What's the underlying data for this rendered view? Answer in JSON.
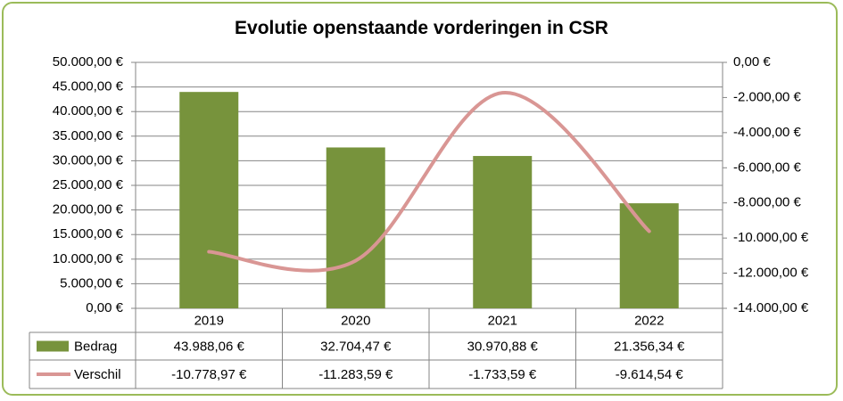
{
  "chart_data": {
    "type": "bar",
    "title": "Evolutie openstaande vorderingen in CSR",
    "categories": [
      "2019",
      "2020",
      "2021",
      "2022"
    ],
    "series": [
      {
        "name": "Bedrag",
        "type": "bar",
        "axis": "left",
        "color": "#77933c",
        "values": [
          43988.06,
          32704.47,
          30970.88,
          21356.34
        ],
        "table_labels": [
          "43.988,06 €",
          "32.704,47 €",
          "30.970,88 €",
          "21.356,34 €"
        ]
      },
      {
        "name": "Verschil",
        "type": "line",
        "axis": "right",
        "color": "#d99694",
        "values": [
          -10778.97,
          -11283.59,
          -1733.59,
          -9614.54
        ],
        "table_labels": [
          "-10.778,97 €",
          "-11.283,59 €",
          "-1.733,59 €",
          "-9.614,54 €"
        ]
      }
    ],
    "y_left": {
      "ylim": [
        0,
        50000
      ],
      "ticks": [
        0,
        5000,
        10000,
        15000,
        20000,
        25000,
        30000,
        35000,
        40000,
        45000,
        50000
      ],
      "tick_labels": [
        "0,00 €",
        "5.000,00 €",
        "10.000,00 €",
        "15.000,00 €",
        "20.000,00 €",
        "25.000,00 €",
        "30.000,00 €",
        "35.000,00 €",
        "40.000,00 €",
        "45.000,00 €",
        "50.000,00 €"
      ]
    },
    "y_right": {
      "ylim": [
        -14000,
        0
      ],
      "ticks": [
        -14000,
        -12000,
        -10000,
        -8000,
        -6000,
        -4000,
        -2000,
        0
      ],
      "tick_labels": [
        "-14.000,00 €",
        "-12.000,00 €",
        "-10.000,00 €",
        "-8.000,00 €",
        "-6.000,00 €",
        "-4.000,00 €",
        "-2.000,00 €",
        "0,00 €"
      ]
    },
    "grid": true,
    "legend": "data-table"
  }
}
